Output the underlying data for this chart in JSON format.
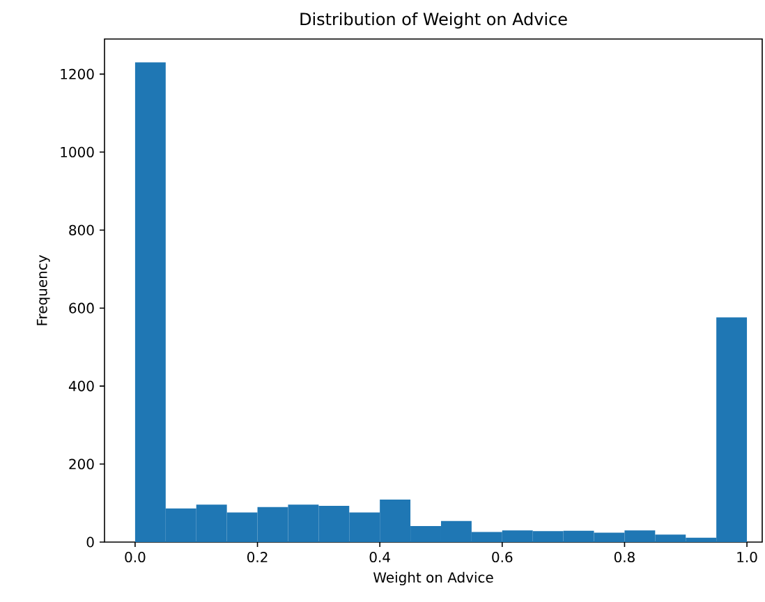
{
  "chart_data": {
    "type": "histogram",
    "title": "Distribution of Weight on Advice",
    "xlabel": "Weight on Advice",
    "ylabel": "Frequency",
    "bins": [
      0,
      0.05,
      0.1,
      0.15,
      0.2,
      0.25,
      0.3,
      0.35,
      0.4,
      0.45,
      0.5,
      0.55,
      0.6,
      0.65,
      0.7,
      0.75,
      0.8,
      0.85,
      0.9,
      0.95,
      1.0
    ],
    "values": [
      1230,
      86,
      96,
      76,
      90,
      96,
      93,
      76,
      109,
      41,
      54,
      26,
      30,
      28,
      29,
      24,
      30,
      19,
      11,
      576
    ],
    "color": "#1f77b4",
    "xlim": [
      -0.05,
      1.025
    ],
    "ylim": [
      0,
      1290
    ],
    "xticks": [
      {
        "value": 0,
        "label": "0.0"
      },
      0.2,
      0.4,
      0.6,
      0.8,
      {
        "value": 1,
        "label": "1.0"
      }
    ],
    "yticks": [
      0,
      200,
      400,
      600,
      800,
      1000,
      1200
    ],
    "grid": false
  }
}
